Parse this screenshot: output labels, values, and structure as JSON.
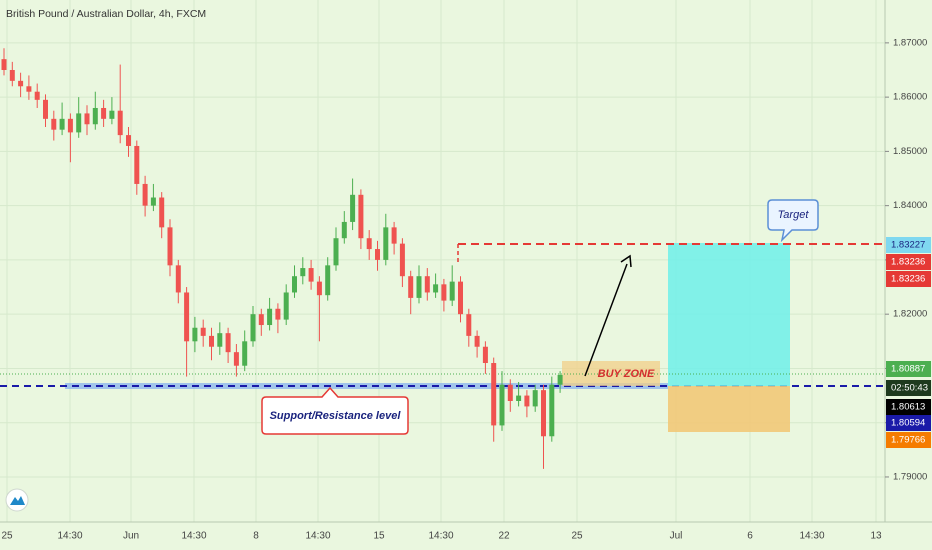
{
  "chart_data": {
    "type": "candlestick",
    "title": "British Pound / Australian Dollar, 4h, FXCM",
    "open": [
      1.867,
      1.865,
      1.863,
      1.862,
      1.861,
      1.8595,
      1.856,
      1.854,
      1.856,
      1.8535,
      1.857,
      1.855,
      1.858,
      1.856,
      1.8575,
      1.853,
      1.851,
      1.844,
      1.84,
      1.8415,
      1.836,
      1.829,
      1.824,
      1.815,
      1.8175,
      1.816,
      1.814,
      1.8165,
      1.813,
      1.8105,
      1.815,
      1.82,
      1.818,
      1.821,
      1.819,
      1.824,
      1.827,
      1.8285,
      1.826,
      1.8235,
      1.829,
      1.834,
      1.837,
      1.842,
      1.834,
      1.832,
      1.83,
      1.836,
      1.833,
      1.827,
      1.823,
      1.827,
      1.824,
      1.8255,
      1.8225,
      1.826,
      1.82,
      1.816,
      1.814,
      1.811,
      1.7995,
      1.807,
      1.804,
      1.805,
      1.803,
      1.806,
      1.7975,
      1.807
    ],
    "high": [
      1.869,
      1.8665,
      1.8645,
      1.864,
      1.8625,
      1.8605,
      1.8575,
      1.859,
      1.857,
      1.86,
      1.8585,
      1.861,
      1.8595,
      1.86,
      1.866,
      1.8545,
      1.852,
      1.8455,
      1.844,
      1.8425,
      1.8375,
      1.83,
      1.825,
      1.8195,
      1.819,
      1.8175,
      1.8185,
      1.8175,
      1.8145,
      1.817,
      1.8215,
      1.821,
      1.823,
      1.822,
      1.8255,
      1.829,
      1.8305,
      1.83,
      1.827,
      1.8305,
      1.836,
      1.839,
      1.845,
      1.843,
      1.8355,
      1.8335,
      1.8385,
      1.837,
      1.834,
      1.828,
      1.829,
      1.8285,
      1.8275,
      1.8265,
      1.829,
      1.827,
      1.821,
      1.817,
      1.815,
      1.812,
      1.8095,
      1.808,
      1.8075,
      1.806,
      1.807,
      1.807,
      1.8085,
      1.8095
    ],
    "low": [
      1.864,
      1.862,
      1.86,
      1.8595,
      1.858,
      1.8545,
      1.852,
      1.853,
      1.848,
      1.8525,
      1.853,
      1.854,
      1.8545,
      1.855,
      1.8515,
      1.849,
      1.842,
      1.838,
      1.839,
      1.834,
      1.827,
      1.822,
      1.8085,
      1.813,
      1.814,
      1.8115,
      1.8125,
      1.811,
      1.8085,
      1.8095,
      1.814,
      1.816,
      1.817,
      1.8165,
      1.818,
      1.823,
      1.8255,
      1.8245,
      1.815,
      1.8225,
      1.828,
      1.833,
      1.8355,
      1.832,
      1.83,
      1.828,
      1.829,
      1.831,
      1.825,
      1.82,
      1.822,
      1.8225,
      1.823,
      1.8205,
      1.8215,
      1.8185,
      1.814,
      1.812,
      1.809,
      1.7965,
      1.7985,
      1.802,
      1.803,
      1.801,
      1.802,
      1.7915,
      1.7965,
      1.8055
    ],
    "close": [
      1.865,
      1.863,
      1.862,
      1.861,
      1.8595,
      1.856,
      1.854,
      1.856,
      1.8535,
      1.857,
      1.855,
      1.858,
      1.856,
      1.8575,
      1.853,
      1.851,
      1.844,
      1.84,
      1.8415,
      1.836,
      1.829,
      1.824,
      1.815,
      1.8175,
      1.816,
      1.814,
      1.8165,
      1.813,
      1.8105,
      1.815,
      1.82,
      1.818,
      1.821,
      1.819,
      1.824,
      1.827,
      1.8285,
      1.826,
      1.8235,
      1.829,
      1.834,
      1.837,
      1.842,
      1.834,
      1.832,
      1.83,
      1.836,
      1.833,
      1.827,
      1.823,
      1.827,
      1.824,
      1.8255,
      1.8225,
      1.826,
      1.82,
      1.816,
      1.814,
      1.811,
      1.7995,
      1.807,
      1.804,
      1.805,
      1.803,
      1.806,
      1.7975,
      1.807,
      1.8088
    ],
    "up_color": "#4caf50",
    "down_color": "#ef5350",
    "ylim": [
      1.7817,
      1.8779
    ],
    "yticks": [
      {
        "value": 1.79,
        "label": "1.79000"
      },
      {
        "value": 1.8,
        "label": "1.80000"
      },
      {
        "value": 1.81,
        "label": "1.81000"
      },
      {
        "value": 1.82,
        "label": "1.82000"
      },
      {
        "value": 1.83,
        "label": "1.83000"
      },
      {
        "value": 1.84,
        "label": "1.84000"
      },
      {
        "value": 1.85,
        "label": "1.85000"
      },
      {
        "value": 1.86,
        "label": "1.86000"
      },
      {
        "value": 1.87,
        "label": "1.87000"
      }
    ],
    "x_labels": [
      "25",
      "14:30",
      "Jun",
      "14:30",
      "8",
      "14:30",
      "15",
      "14:30",
      "22",
      "25",
      "Jul",
      "6",
      "14:30",
      "13"
    ],
    "grid": true,
    "price_labels": [
      {
        "label": "1.83227",
        "color": "#7fd8f0"
      },
      {
        "label": "1.83236",
        "color": "#e53935"
      },
      {
        "label": "1.83236",
        "color": "#e53935"
      },
      {
        "label": "1.80887",
        "color": "#4caf50"
      },
      {
        "label": "02:50:43",
        "color": "#1e3a1e"
      },
      {
        "label": "1.80613",
        "color": "#000000"
      },
      {
        "label": "1.80594",
        "color": "#1a1aa8"
      },
      {
        "label": "1.79766",
        "color": "#f57c00"
      }
    ],
    "annotations": {
      "target": "Target",
      "buy_zone": "BUY ZONE",
      "support": "Support/Resistance level"
    }
  }
}
